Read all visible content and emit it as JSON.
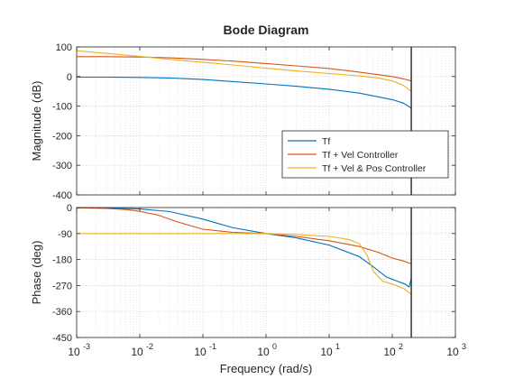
{
  "chart_data": {
    "type": "line",
    "title": "Bode Diagram",
    "xlabel": "Frequency  (rad/s)",
    "x_scale": "log",
    "xlim_exponents": [
      -3,
      3
    ],
    "x_tick_base": "10",
    "x_tick_exponents": [
      "-3",
      "-2",
      "-1",
      "0",
      "1",
      "2",
      "3"
    ],
    "vertical_marker_x": 200,
    "colors": {
      "tf": "#0072BD",
      "vel": "#D95319",
      "velpos": "#EDB120",
      "marker": "#262626"
    },
    "legend": {
      "placement": "inside-lower-right of magnitude plot",
      "entries": [
        "Tf",
        "Tf + Vel Controller",
        "Tf + Vel & Pos Controller"
      ]
    },
    "panels": [
      {
        "id": "magnitude",
        "ylabel": "Magnitude (dB)",
        "ylim": [
          -400,
          100
        ],
        "yticks": [
          100,
          0,
          -100,
          -200,
          -300,
          -400
        ],
        "ytick_labels": [
          "100",
          "0",
          "-100",
          "-200",
          "-300",
          "-400"
        ],
        "series": [
          {
            "name": "Tf",
            "color_key": "tf",
            "x": [
              0.001,
              0.003,
              0.01,
              0.03,
              0.1,
              0.3,
              1,
              3,
              10,
              30,
              100,
              150,
              180,
              200
            ],
            "y": [
              -2,
              -2,
              -3,
              -5,
              -10,
              -17,
              -25,
              -33,
              -43,
              -56,
              -78,
              -90,
              -100,
              -108
            ]
          },
          {
            "name": "Tf + Vel Controller",
            "color_key": "vel",
            "x": [
              0.001,
              0.003,
              0.01,
              0.03,
              0.1,
              0.3,
              1,
              3,
              10,
              30,
              100,
              150,
              200
            ],
            "y": [
              67,
              67,
              66,
              63,
              58,
              52,
              44,
              36,
              27,
              15,
              0,
              -8,
              -15
            ]
          },
          {
            "name": "Tf + Vel & Pos Controller",
            "color_key": "velpos",
            "x": [
              0.001,
              0.003,
              0.01,
              0.03,
              0.1,
              0.3,
              1,
              3,
              10,
              30,
              60,
              100,
              150,
              200
            ],
            "y": [
              87,
              78,
              68,
              58,
              48,
              39,
              28,
              19,
              10,
              2,
              -5,
              -15,
              -30,
              -50
            ]
          }
        ]
      },
      {
        "id": "phase",
        "ylabel": "Phase (deg)",
        "ylim": [
          -450,
          0
        ],
        "yticks": [
          0,
          -90,
          -180,
          -270,
          -360,
          -450
        ],
        "ytick_labels": [
          "0",
          "-90",
          "-180",
          "-270",
          "-360",
          "-450"
        ],
        "series": [
          {
            "name": "Tf",
            "color_key": "tf",
            "x": [
              0.001,
              0.003,
              0.01,
              0.03,
              0.1,
              0.3,
              1,
              3,
              10,
              30,
              50,
              80,
              120,
              160,
              185,
              200
            ],
            "y": [
              -1,
              -2,
              -5,
              -14,
              -40,
              -70,
              -90,
              -105,
              -130,
              -170,
              -205,
              -240,
              -255,
              -265,
              -275,
              -245
            ]
          },
          {
            "name": "Tf + Vel Controller",
            "color_key": "vel",
            "x": [
              0.001,
              0.003,
              0.006,
              0.01,
              0.02,
              0.04,
              0.1,
              0.3,
              1,
              3,
              10,
              30,
              60,
              100,
              150,
              200
            ],
            "y": [
              -1,
              -3,
              -7,
              -13,
              -27,
              -50,
              -75,
              -86,
              -90,
              -100,
              -115,
              -135,
              -155,
              -175,
              -185,
              -195
            ]
          },
          {
            "name": "Tf + Vel & Pos Controller",
            "color_key": "velpos",
            "x": [
              0.001,
              0.01,
              0.1,
              1,
              3,
              10,
              20,
              30,
              40,
              50,
              70,
              100,
              150,
              200
            ],
            "y": [
              -90,
              -90,
              -90,
              -90,
              -93,
              -100,
              -110,
              -125,
              -165,
              -220,
              -255,
              -265,
              -280,
              -300
            ]
          }
        ]
      }
    ]
  }
}
